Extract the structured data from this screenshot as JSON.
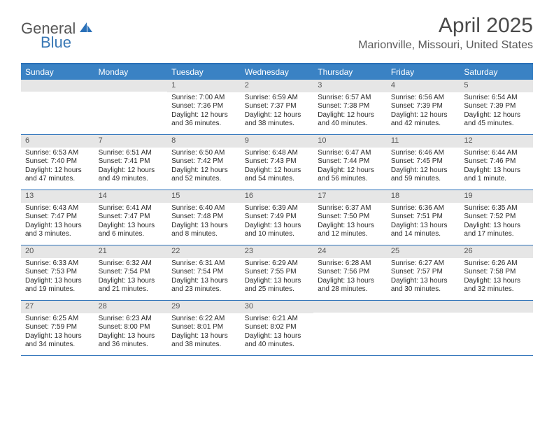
{
  "brand": {
    "general": "General",
    "blue": "Blue"
  },
  "title": "April 2025",
  "location": "Marionville, Missouri, United States",
  "colors": {
    "header_bg": "#3a82c4",
    "border": "#2a70b8",
    "daynum_bg": "#e6e6e6",
    "text": "#333333",
    "brand_blue": "#3a78b5"
  },
  "calendar": {
    "type": "table",
    "columns": [
      "Sunday",
      "Monday",
      "Tuesday",
      "Wednesday",
      "Thursday",
      "Friday",
      "Saturday"
    ],
    "weeks": [
      [
        {
          "n": "",
          "sunrise": "",
          "sunset": "",
          "daylight1": "",
          "daylight2": ""
        },
        {
          "n": "",
          "sunrise": "",
          "sunset": "",
          "daylight1": "",
          "daylight2": ""
        },
        {
          "n": "1",
          "sunrise": "Sunrise: 7:00 AM",
          "sunset": "Sunset: 7:36 PM",
          "daylight1": "Daylight: 12 hours",
          "daylight2": "and 36 minutes."
        },
        {
          "n": "2",
          "sunrise": "Sunrise: 6:59 AM",
          "sunset": "Sunset: 7:37 PM",
          "daylight1": "Daylight: 12 hours",
          "daylight2": "and 38 minutes."
        },
        {
          "n": "3",
          "sunrise": "Sunrise: 6:57 AM",
          "sunset": "Sunset: 7:38 PM",
          "daylight1": "Daylight: 12 hours",
          "daylight2": "and 40 minutes."
        },
        {
          "n": "4",
          "sunrise": "Sunrise: 6:56 AM",
          "sunset": "Sunset: 7:39 PM",
          "daylight1": "Daylight: 12 hours",
          "daylight2": "and 42 minutes."
        },
        {
          "n": "5",
          "sunrise": "Sunrise: 6:54 AM",
          "sunset": "Sunset: 7:39 PM",
          "daylight1": "Daylight: 12 hours",
          "daylight2": "and 45 minutes."
        }
      ],
      [
        {
          "n": "6",
          "sunrise": "Sunrise: 6:53 AM",
          "sunset": "Sunset: 7:40 PM",
          "daylight1": "Daylight: 12 hours",
          "daylight2": "and 47 minutes."
        },
        {
          "n": "7",
          "sunrise": "Sunrise: 6:51 AM",
          "sunset": "Sunset: 7:41 PM",
          "daylight1": "Daylight: 12 hours",
          "daylight2": "and 49 minutes."
        },
        {
          "n": "8",
          "sunrise": "Sunrise: 6:50 AM",
          "sunset": "Sunset: 7:42 PM",
          "daylight1": "Daylight: 12 hours",
          "daylight2": "and 52 minutes."
        },
        {
          "n": "9",
          "sunrise": "Sunrise: 6:48 AM",
          "sunset": "Sunset: 7:43 PM",
          "daylight1": "Daylight: 12 hours",
          "daylight2": "and 54 minutes."
        },
        {
          "n": "10",
          "sunrise": "Sunrise: 6:47 AM",
          "sunset": "Sunset: 7:44 PM",
          "daylight1": "Daylight: 12 hours",
          "daylight2": "and 56 minutes."
        },
        {
          "n": "11",
          "sunrise": "Sunrise: 6:46 AM",
          "sunset": "Sunset: 7:45 PM",
          "daylight1": "Daylight: 12 hours",
          "daylight2": "and 59 minutes."
        },
        {
          "n": "12",
          "sunrise": "Sunrise: 6:44 AM",
          "sunset": "Sunset: 7:46 PM",
          "daylight1": "Daylight: 13 hours",
          "daylight2": "and 1 minute."
        }
      ],
      [
        {
          "n": "13",
          "sunrise": "Sunrise: 6:43 AM",
          "sunset": "Sunset: 7:47 PM",
          "daylight1": "Daylight: 13 hours",
          "daylight2": "and 3 minutes."
        },
        {
          "n": "14",
          "sunrise": "Sunrise: 6:41 AM",
          "sunset": "Sunset: 7:47 PM",
          "daylight1": "Daylight: 13 hours",
          "daylight2": "and 6 minutes."
        },
        {
          "n": "15",
          "sunrise": "Sunrise: 6:40 AM",
          "sunset": "Sunset: 7:48 PM",
          "daylight1": "Daylight: 13 hours",
          "daylight2": "and 8 minutes."
        },
        {
          "n": "16",
          "sunrise": "Sunrise: 6:39 AM",
          "sunset": "Sunset: 7:49 PM",
          "daylight1": "Daylight: 13 hours",
          "daylight2": "and 10 minutes."
        },
        {
          "n": "17",
          "sunrise": "Sunrise: 6:37 AM",
          "sunset": "Sunset: 7:50 PM",
          "daylight1": "Daylight: 13 hours",
          "daylight2": "and 12 minutes."
        },
        {
          "n": "18",
          "sunrise": "Sunrise: 6:36 AM",
          "sunset": "Sunset: 7:51 PM",
          "daylight1": "Daylight: 13 hours",
          "daylight2": "and 14 minutes."
        },
        {
          "n": "19",
          "sunrise": "Sunrise: 6:35 AM",
          "sunset": "Sunset: 7:52 PM",
          "daylight1": "Daylight: 13 hours",
          "daylight2": "and 17 minutes."
        }
      ],
      [
        {
          "n": "20",
          "sunrise": "Sunrise: 6:33 AM",
          "sunset": "Sunset: 7:53 PM",
          "daylight1": "Daylight: 13 hours",
          "daylight2": "and 19 minutes."
        },
        {
          "n": "21",
          "sunrise": "Sunrise: 6:32 AM",
          "sunset": "Sunset: 7:54 PM",
          "daylight1": "Daylight: 13 hours",
          "daylight2": "and 21 minutes."
        },
        {
          "n": "22",
          "sunrise": "Sunrise: 6:31 AM",
          "sunset": "Sunset: 7:54 PM",
          "daylight1": "Daylight: 13 hours",
          "daylight2": "and 23 minutes."
        },
        {
          "n": "23",
          "sunrise": "Sunrise: 6:29 AM",
          "sunset": "Sunset: 7:55 PM",
          "daylight1": "Daylight: 13 hours",
          "daylight2": "and 25 minutes."
        },
        {
          "n": "24",
          "sunrise": "Sunrise: 6:28 AM",
          "sunset": "Sunset: 7:56 PM",
          "daylight1": "Daylight: 13 hours",
          "daylight2": "and 28 minutes."
        },
        {
          "n": "25",
          "sunrise": "Sunrise: 6:27 AM",
          "sunset": "Sunset: 7:57 PM",
          "daylight1": "Daylight: 13 hours",
          "daylight2": "and 30 minutes."
        },
        {
          "n": "26",
          "sunrise": "Sunrise: 6:26 AM",
          "sunset": "Sunset: 7:58 PM",
          "daylight1": "Daylight: 13 hours",
          "daylight2": "and 32 minutes."
        }
      ],
      [
        {
          "n": "27",
          "sunrise": "Sunrise: 6:25 AM",
          "sunset": "Sunset: 7:59 PM",
          "daylight1": "Daylight: 13 hours",
          "daylight2": "and 34 minutes."
        },
        {
          "n": "28",
          "sunrise": "Sunrise: 6:23 AM",
          "sunset": "Sunset: 8:00 PM",
          "daylight1": "Daylight: 13 hours",
          "daylight2": "and 36 minutes."
        },
        {
          "n": "29",
          "sunrise": "Sunrise: 6:22 AM",
          "sunset": "Sunset: 8:01 PM",
          "daylight1": "Daylight: 13 hours",
          "daylight2": "and 38 minutes."
        },
        {
          "n": "30",
          "sunrise": "Sunrise: 6:21 AM",
          "sunset": "Sunset: 8:02 PM",
          "daylight1": "Daylight: 13 hours",
          "daylight2": "and 40 minutes."
        },
        {
          "n": "",
          "sunrise": "",
          "sunset": "",
          "daylight1": "",
          "daylight2": ""
        },
        {
          "n": "",
          "sunrise": "",
          "sunset": "",
          "daylight1": "",
          "daylight2": ""
        },
        {
          "n": "",
          "sunrise": "",
          "sunset": "",
          "daylight1": "",
          "daylight2": ""
        }
      ]
    ]
  }
}
